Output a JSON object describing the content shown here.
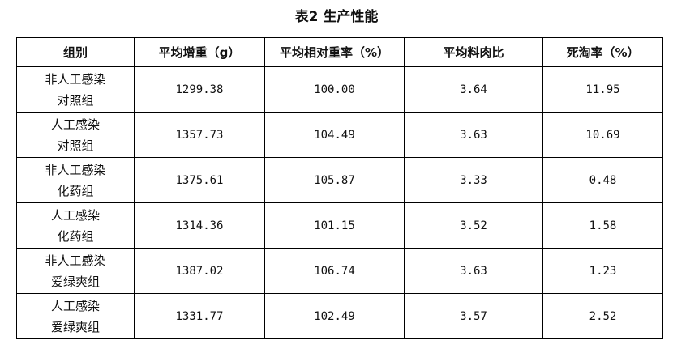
{
  "title": "表2  生产性能",
  "table": {
    "headers": [
      "组别",
      "平均增重（g）",
      "平均相对重率（%）",
      "平均料肉比",
      "死淘率（%）"
    ],
    "rows": [
      {
        "group": [
          "非人工感染",
          "对照组"
        ],
        "values": [
          "1299.38",
          "100.00",
          "3.64",
          "11.95"
        ]
      },
      {
        "group": [
          "人工感染",
          "对照组"
        ],
        "values": [
          "1357.73",
          "104.49",
          "3.63",
          "10.69"
        ]
      },
      {
        "group": [
          "非人工感染",
          "化药组"
        ],
        "values": [
          "1375.61",
          "105.87",
          "3.33",
          "0.48"
        ]
      },
      {
        "group": [
          "人工感染",
          "化药组"
        ],
        "values": [
          "1314.36",
          "101.15",
          "3.52",
          "1.58"
        ]
      },
      {
        "group": [
          "非人工感染",
          "爱绿爽组"
        ],
        "values": [
          "1387.02",
          "106.74",
          "3.63",
          "1.23"
        ]
      },
      {
        "group": [
          "人工感染",
          "爱绿爽组"
        ],
        "values": [
          "1331.77",
          "102.49",
          "3.57",
          "2.52"
        ]
      }
    ]
  }
}
